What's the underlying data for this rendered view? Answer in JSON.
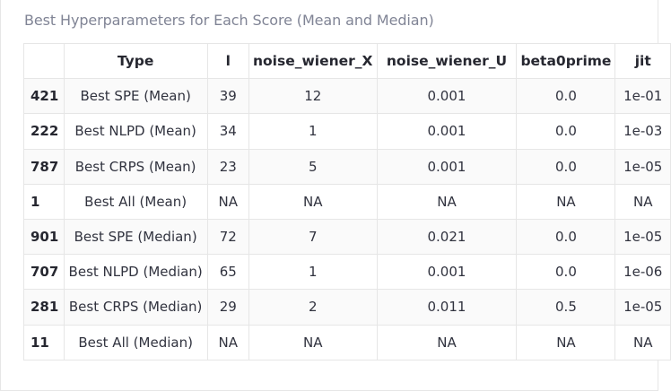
{
  "caption": "Best Hyperparameters for Each Score (Mean and Median)",
  "table": {
    "columns": [
      "",
      "Type",
      "l",
      "noise_wiener_X",
      "noise_wiener_U",
      "beta0prime",
      "jit"
    ],
    "rows": [
      {
        "index": "421",
        "cells": [
          "Best SPE (Mean)",
          "39",
          "12",
          "0.001",
          "0.0",
          "1e-01"
        ]
      },
      {
        "index": "222",
        "cells": [
          "Best NLPD (Mean)",
          "34",
          "1",
          "0.001",
          "0.0",
          "1e-03"
        ]
      },
      {
        "index": "787",
        "cells": [
          "Best CRPS (Mean)",
          "23",
          "5",
          "0.001",
          "0.0",
          "1e-05"
        ]
      },
      {
        "index": "1",
        "cells": [
          "Best All (Mean)",
          "NA",
          "NA",
          "NA",
          "NA",
          "NA"
        ]
      },
      {
        "index": "901",
        "cells": [
          "Best SPE (Median)",
          "72",
          "7",
          "0.021",
          "0.0",
          "1e-05"
        ]
      },
      {
        "index": "707",
        "cells": [
          "Best NLPD (Median)",
          "65",
          "1",
          "0.001",
          "0.0",
          "1e-06"
        ]
      },
      {
        "index": "281",
        "cells": [
          "Best CRPS (Median)",
          "29",
          "2",
          "0.011",
          "0.5",
          "1e-05"
        ]
      },
      {
        "index": "11",
        "cells": [
          "Best All (Median)",
          "NA",
          "NA",
          "NA",
          "NA",
          "NA"
        ]
      }
    ]
  }
}
